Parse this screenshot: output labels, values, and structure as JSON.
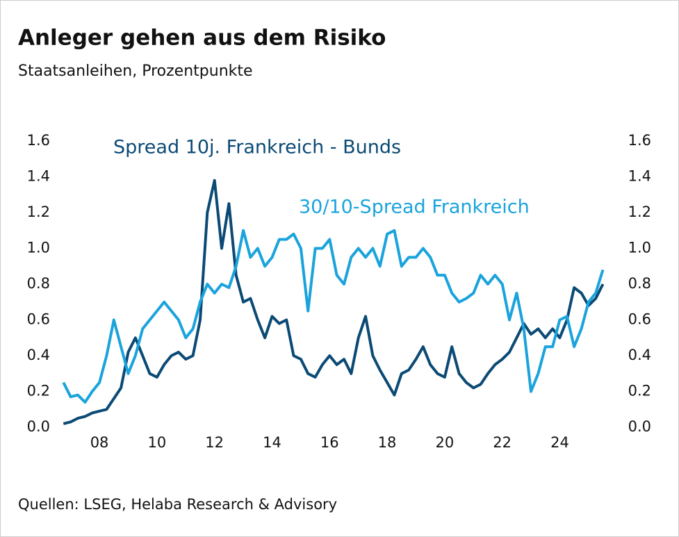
{
  "chart_data": {
    "type": "line",
    "title": "Anleger gehen aus dem Risiko",
    "subtitle": "Staatsanleihen, Prozentpunkte",
    "source": "Quellen: LSEG, Helaba Research & Advisory",
    "x": [
      2006.75,
      2007.0,
      2007.25,
      2007.5,
      2007.75,
      2008.0,
      2008.25,
      2008.5,
      2008.75,
      2009.0,
      2009.25,
      2009.5,
      2009.75,
      2010.0,
      2010.25,
      2010.5,
      2010.75,
      2011.0,
      2011.25,
      2011.5,
      2011.75,
      2012.0,
      2012.25,
      2012.5,
      2012.75,
      2013.0,
      2013.25,
      2013.5,
      2013.75,
      2014.0,
      2014.25,
      2014.5,
      2014.75,
      2015.0,
      2015.25,
      2015.5,
      2015.75,
      2016.0,
      2016.25,
      2016.5,
      2016.75,
      2017.0,
      2017.25,
      2017.5,
      2017.75,
      2018.0,
      2018.25,
      2018.5,
      2018.75,
      2019.0,
      2019.25,
      2019.5,
      2019.75,
      2020.0,
      2020.25,
      2020.5,
      2020.75,
      2021.0,
      2021.25,
      2021.5,
      2021.75,
      2022.0,
      2022.25,
      2022.5,
      2022.75,
      2023.0,
      2023.25,
      2023.5,
      2023.75,
      2024.0,
      2024.25,
      2024.5,
      2024.75,
      2025.0,
      2025.25,
      2025.5
    ],
    "series": [
      {
        "name": "Spread 10j. Frankreich - Bunds",
        "color": "#0b4a75",
        "values": [
          0.02,
          0.03,
          0.05,
          0.06,
          0.08,
          0.09,
          0.1,
          0.16,
          0.22,
          0.42,
          0.5,
          0.4,
          0.3,
          0.28,
          0.35,
          0.4,
          0.42,
          0.38,
          0.4,
          0.6,
          1.2,
          1.38,
          1.0,
          1.25,
          0.85,
          0.7,
          0.72,
          0.6,
          0.5,
          0.62,
          0.58,
          0.6,
          0.4,
          0.38,
          0.3,
          0.28,
          0.35,
          0.4,
          0.35,
          0.38,
          0.3,
          0.5,
          0.62,
          0.4,
          0.32,
          0.25,
          0.18,
          0.3,
          0.32,
          0.38,
          0.45,
          0.35,
          0.3,
          0.28,
          0.45,
          0.3,
          0.25,
          0.22,
          0.24,
          0.3,
          0.35,
          0.38,
          0.42,
          0.5,
          0.58,
          0.52,
          0.55,
          0.5,
          0.55,
          0.5,
          0.6,
          0.78,
          0.75,
          0.68,
          0.72,
          0.8
        ]
      },
      {
        "name": "30/10-Spread Frankreich",
        "color": "#1aa3dc",
        "values": [
          0.25,
          0.17,
          0.18,
          0.14,
          0.2,
          0.25,
          0.4,
          0.6,
          0.45,
          0.3,
          0.4,
          0.55,
          0.6,
          0.65,
          0.7,
          0.65,
          0.6,
          0.5,
          0.55,
          0.7,
          0.8,
          0.75,
          0.8,
          0.78,
          0.9,
          1.1,
          0.95,
          1.0,
          0.9,
          0.95,
          1.05,
          1.05,
          1.08,
          1.0,
          0.65,
          1.0,
          1.0,
          1.05,
          0.85,
          0.8,
          0.95,
          1.0,
          0.95,
          1.0,
          0.9,
          1.08,
          1.1,
          0.9,
          0.95,
          0.95,
          1.0,
          0.95,
          0.85,
          0.85,
          0.75,
          0.7,
          0.72,
          0.75,
          0.85,
          0.8,
          0.85,
          0.8,
          0.6,
          0.75,
          0.55,
          0.2,
          0.3,
          0.45,
          0.45,
          0.6,
          0.62,
          0.45,
          0.55,
          0.7,
          0.75,
          0.88
        ]
      }
    ],
    "xlim": [
      2006.67,
      2025.68
    ],
    "xticks": [
      {
        "value": 2008,
        "label": "08"
      },
      {
        "value": 2010,
        "label": "10"
      },
      {
        "value": 2012,
        "label": "12"
      },
      {
        "value": 2014,
        "label": "14"
      },
      {
        "value": 2016,
        "label": "16"
      },
      {
        "value": 2018,
        "label": "18"
      },
      {
        "value": 2020,
        "label": "20"
      },
      {
        "value": 2022,
        "label": "22"
      },
      {
        "value": 2024,
        "label": "24"
      }
    ],
    "ylim": [
      0,
      1.6
    ],
    "yticks": [
      {
        "value": 0,
        "label": "0.0"
      },
      {
        "value": 0.2,
        "label": "0.2"
      },
      {
        "value": 0.4,
        "label": "0.4"
      },
      {
        "value": 0.6,
        "label": "0.6"
      },
      {
        "value": 0.8,
        "label": "0.8"
      },
      {
        "value": 1,
        "label": "1.0"
      },
      {
        "value": 1.2,
        "label": "1.2"
      },
      {
        "value": 1.4,
        "label": "1.4"
      },
      {
        "value": 1.6,
        "label": "1.6"
      }
    ],
    "y2lim": [
      0,
      1.6
    ],
    "y2ticks": [
      {
        "value": 0,
        "label": "0.0"
      },
      {
        "value": 0.2,
        "label": "0.2"
      },
      {
        "value": 0.4,
        "label": "0.4"
      },
      {
        "value": 0.6,
        "label": "0.6"
      },
      {
        "value": 0.8,
        "label": "0.8"
      },
      {
        "value": 1,
        "label": "1.0"
      },
      {
        "value": 1.2,
        "label": "1.2"
      },
      {
        "value": 1.4,
        "label": "1.4"
      },
      {
        "value": 1.6,
        "label": "1.6"
      }
    ]
  }
}
